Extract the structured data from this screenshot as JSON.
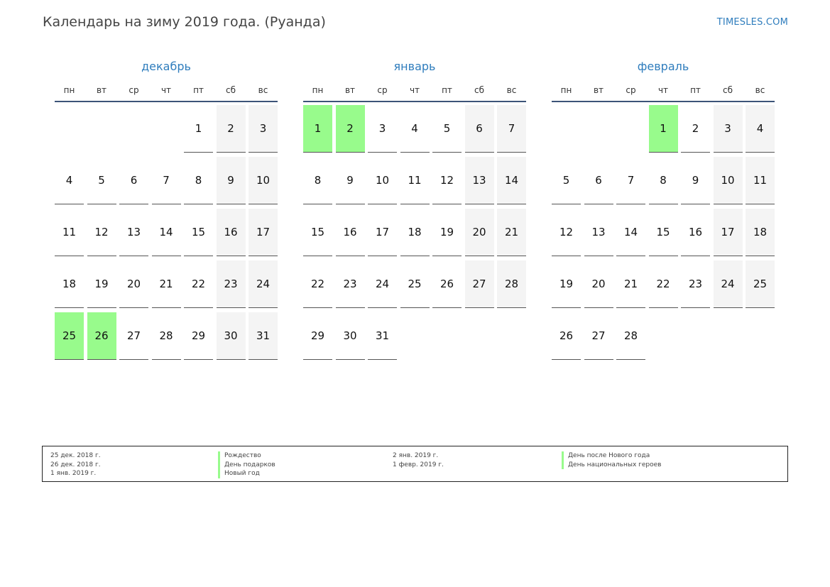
{
  "header": {
    "title": "Календарь на зиму 2019 года. (Руанда)",
    "site": "TIMESLES.COM"
  },
  "colors": {
    "accent": "#2f7dbd",
    "holiday": "#98fb8c",
    "weekend": "#f4f4f4"
  },
  "weekdays": [
    "пн",
    "вт",
    "ср",
    "чт",
    "пт",
    "сб",
    "вс"
  ],
  "months": [
    {
      "name": "декабрь",
      "days": 31,
      "first_weekday": 5,
      "holidays": [
        25,
        26
      ]
    },
    {
      "name": "январь",
      "days": 31,
      "first_weekday": 1,
      "holidays": [
        1,
        2
      ]
    },
    {
      "name": "февраль",
      "days": 28,
      "first_weekday": 4,
      "holidays": [
        1
      ]
    }
  ],
  "legend": {
    "left": [
      {
        "date": "25 дек. 2018 г.",
        "name": "Рождество"
      },
      {
        "date": "26 дек. 2018 г.",
        "name": "День подарков"
      },
      {
        "date": "1 янв. 2019 г.",
        "name": "Новый год"
      }
    ],
    "right": [
      {
        "date": "2 янв. 2019 г.",
        "name": "День после Нового года"
      },
      {
        "date": "1 февр. 2019 г.",
        "name": "День национальных героев"
      }
    ]
  }
}
